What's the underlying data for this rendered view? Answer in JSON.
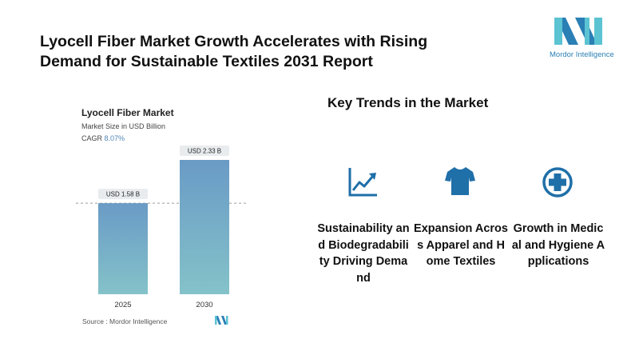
{
  "header": {
    "title": "Lyocell Fiber Market Growth Accelerates with Rising Demand for Sustainable Textiles 2031 Report",
    "logo_text": "Mordor Intelligence"
  },
  "chart_panel": {
    "title": "Lyocell Fiber Market",
    "subtitle": "Market Size in USD Billion",
    "cagr_label": "CAGR",
    "cagr_value": "8.07%",
    "source": "Source :  Mordor Intelligence"
  },
  "chart_data": {
    "type": "bar",
    "title": "Lyocell Fiber Market",
    "subtitle": "Market Size in USD Billion",
    "categories": [
      "2025",
      "2030"
    ],
    "values": [
      1.58,
      2.33
    ],
    "data_labels": [
      "USD 1.58 B",
      "USD 2.33 B"
    ],
    "bar_gradient": [
      "#6a9bc6",
      "#84c2c9"
    ],
    "reference_line": 1.58,
    "ylim": [
      0,
      2.5
    ],
    "grid": false
  },
  "trends": {
    "title": "Key Trends in the Market",
    "items": [
      {
        "icon": "trend-chart-icon",
        "label": "Sustainability and Biodegradability Driving Demand"
      },
      {
        "icon": "tshirt-icon",
        "label": "Expansion Across Apparel and Home Textiles"
      },
      {
        "icon": "medical-cross-icon",
        "label": "Growth in Medical and Hygiene Applications"
      }
    ]
  },
  "colors": {
    "accent": "#1f6fa8",
    "logo_light": "#5cc3d3",
    "logo_dark": "#2a7fb5"
  }
}
